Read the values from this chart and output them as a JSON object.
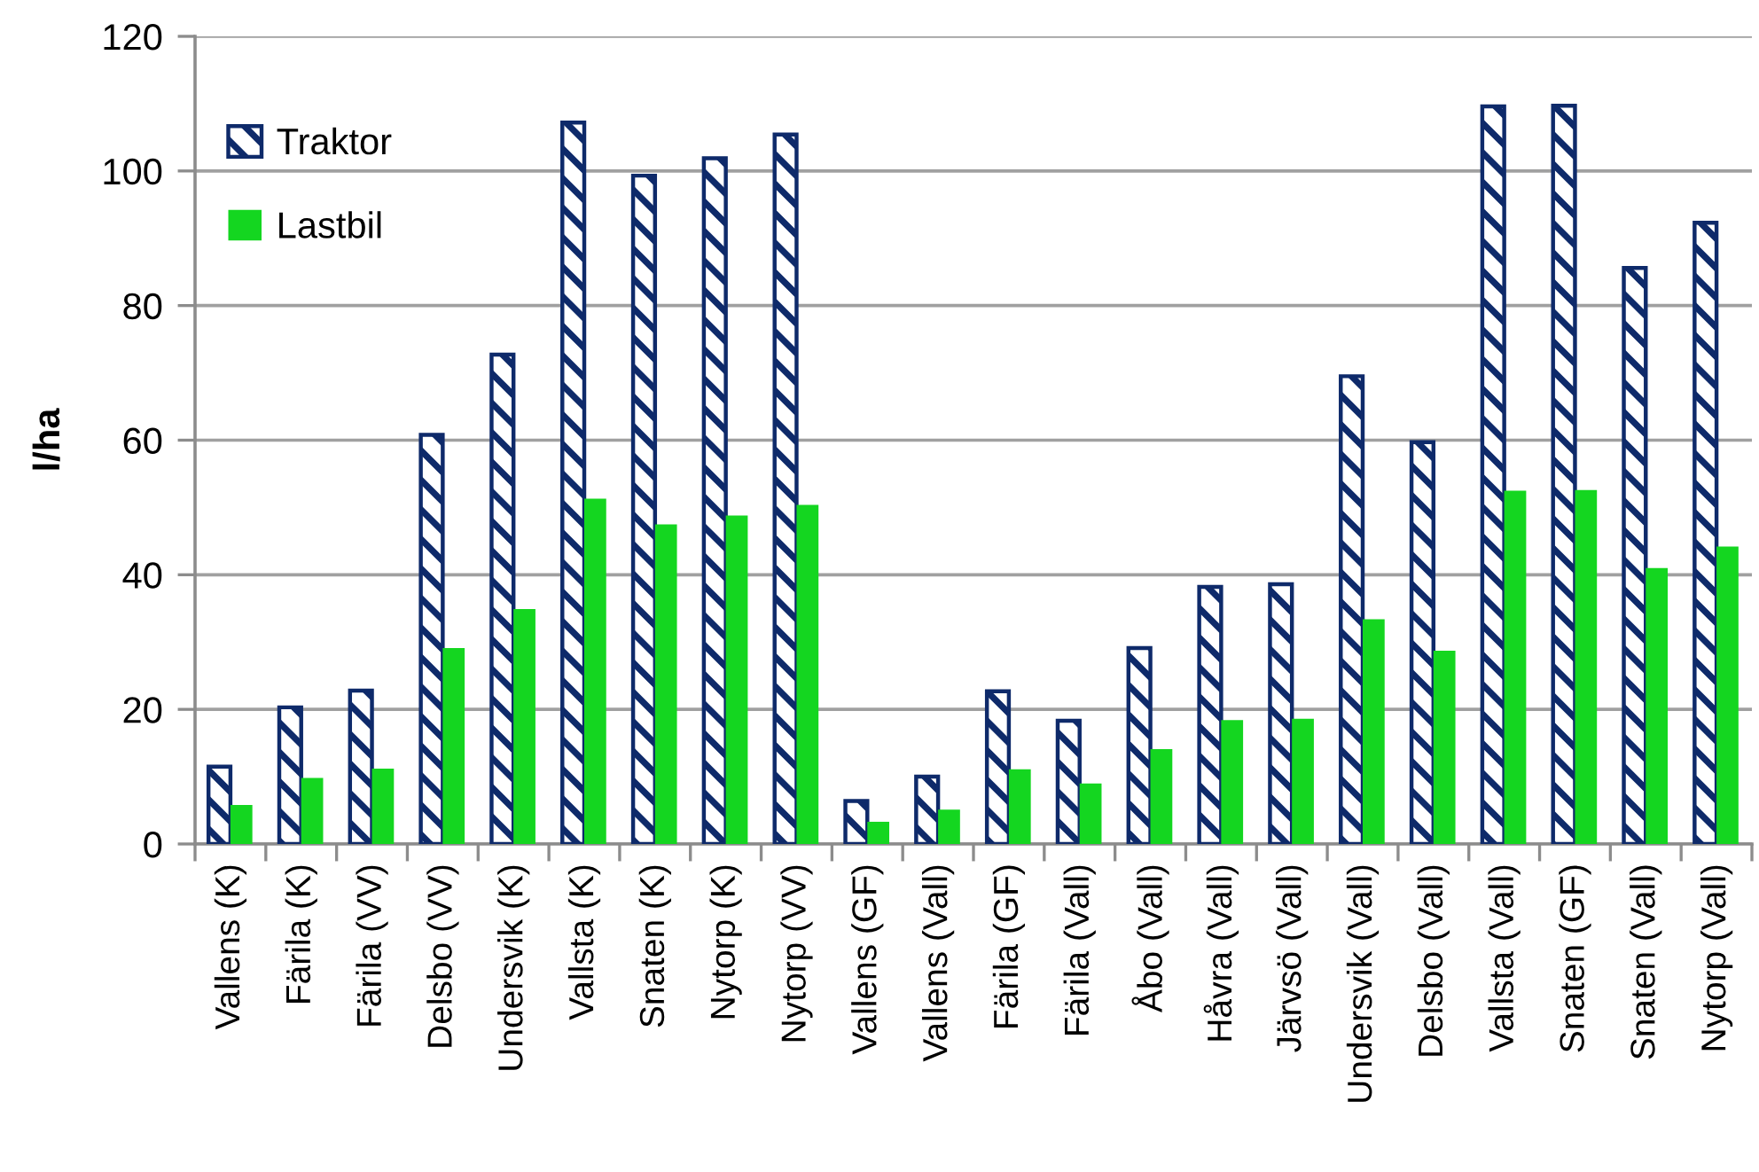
{
  "chart_data": {
    "type": "bar",
    "ylabel": "l/ha",
    "categories": [
      "Vallens (K)",
      "Färila (K)",
      "Färila (VV)",
      "Delsbo (VV)",
      "Undersvik (K)",
      "Vallsta (K)",
      "Snaten (K)",
      "Nytorp (K)",
      "Nytorp (VV)",
      "Vallens (GF)",
      "Vallens (Vall)",
      "Färila (GF)",
      "Färila (Vall)",
      "Åbo (Vall)",
      "Håvra (Vall)",
      "Järvsö (Vall)",
      "Undersvik (Vall)",
      "Delsbo (Vall)",
      "Vallsta (Vall)",
      "Snaten (GF)",
      "Snaten (Vall)",
      "Nytorp (Vall)"
    ],
    "series": [
      {
        "name": "Traktor",
        "color": "#0e2a6a",
        "values": [
          11.5,
          20.3,
          22.8,
          60.8,
          72.7,
          107.2,
          99.3,
          101.9,
          105.4,
          6.4,
          10.0,
          22.7,
          18.3,
          29.1,
          38.2,
          38.6,
          69.5,
          59.7,
          109.6,
          109.7,
          85.6,
          92.3
        ]
      },
      {
        "name": "Lastbil",
        "color": "#14d620",
        "values": [
          5.8,
          9.8,
          11.2,
          29.1,
          34.9,
          51.3,
          47.5,
          48.8,
          50.4,
          3.3,
          5.1,
          11.1,
          9.0,
          14.1,
          18.4,
          18.6,
          33.4,
          28.7,
          52.5,
          52.6,
          41.0,
          44.2
        ]
      }
    ],
    "ylim": [
      0,
      120
    ],
    "yticks": [
      0,
      20,
      40,
      60,
      80,
      100,
      120
    ],
    "grid": "y",
    "legend": "top left"
  }
}
